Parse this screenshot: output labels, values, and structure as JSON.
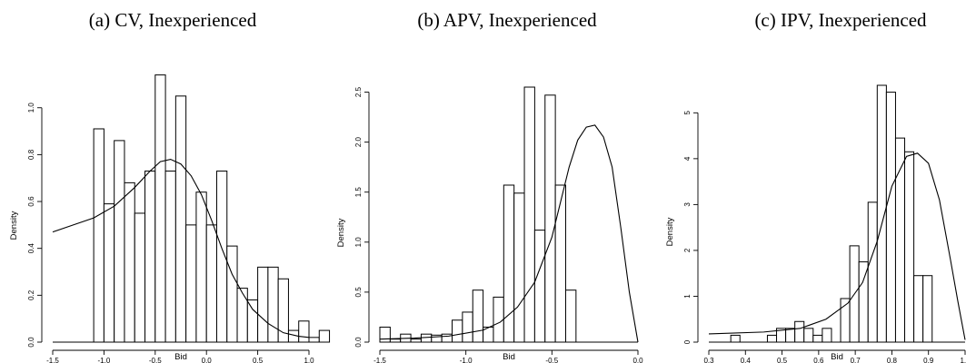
{
  "chart_data": [
    {
      "type": "histogram",
      "title": "(a) CV, Inexperienced",
      "xlabel": "Bid",
      "ylabel": "Density",
      "xlim": [
        -1.5,
        1.0
      ],
      "ylim": [
        0,
        1.15
      ],
      "xticks": [
        -1.5,
        -1.0,
        -0.5,
        0.0,
        0.5,
        1.0
      ],
      "xtick_labels": [
        "-1.5",
        "-1.0",
        "-0.5",
        "0.0",
        "0.5",
        "1.0"
      ],
      "yticks": [
        0,
        0.2,
        0.4,
        0.6,
        0.8,
        1.0
      ],
      "ytick_labels": [
        "0.0",
        "0.2",
        "0.4",
        "0.6",
        "0.8",
        "1.0"
      ],
      "bin_start": -1.1,
      "bin_width": 0.1,
      "values": [
        0.91,
        0.59,
        0.86,
        0.68,
        0.55,
        0.73,
        1.14,
        0.73,
        1.05,
        0.5,
        0.64,
        0.5,
        0.73,
        0.41,
        0.23,
        0.18,
        0.32,
        0.32,
        0.27,
        0.05,
        0.09,
        0.02,
        0.05
      ],
      "density_curve": {
        "x": [
          -1.5,
          -1.3,
          -1.1,
          -0.9,
          -0.7,
          -0.55,
          -0.45,
          -0.35,
          -0.25,
          -0.15,
          -0.05,
          0.05,
          0.15,
          0.25,
          0.35,
          0.45,
          0.6,
          0.75,
          0.9,
          1.0
        ],
        "y": [
          0.47,
          0.5,
          0.53,
          0.58,
          0.66,
          0.73,
          0.77,
          0.78,
          0.76,
          0.71,
          0.63,
          0.52,
          0.4,
          0.29,
          0.21,
          0.14,
          0.08,
          0.04,
          0.025,
          0.02
        ]
      }
    },
    {
      "type": "histogram",
      "title": "(b) APV, Inexperienced",
      "xlabel": "Bid",
      "ylabel": "Density",
      "xlim": [
        -1.5,
        0.0
      ],
      "ylim": [
        0,
        2.55
      ],
      "xticks": [
        -1.5,
        -1.0,
        -0.5,
        0.0
      ],
      "xtick_labels": [
        "-1.5",
        "-1.0",
        "-0.5",
        "0.0"
      ],
      "yticks": [
        0,
        0.5,
        1.0,
        1.5,
        2.0,
        2.5
      ],
      "ytick_labels": [
        "0.0",
        "0.5",
        "1.0",
        "1.5",
        "2.0",
        "2.5"
      ],
      "bin_start": -1.5,
      "bin_width": 0.06,
      "values": [
        0.15,
        0.03,
        0.08,
        0.03,
        0.08,
        0.07,
        0.08,
        0.22,
        0.3,
        0.52,
        0.15,
        0.45,
        1.57,
        1.49,
        2.55,
        1.12,
        2.47,
        1.57,
        0.52
      ],
      "density_curve": {
        "x": [
          -1.5,
          -1.3,
          -1.1,
          -0.9,
          -0.8,
          -0.7,
          -0.6,
          -0.5,
          -0.45,
          -0.4,
          -0.35,
          -0.3,
          -0.25,
          -0.2,
          -0.15,
          -0.1,
          -0.05,
          0.0
        ],
        "y": [
          0.03,
          0.04,
          0.06,
          0.12,
          0.2,
          0.35,
          0.6,
          1.05,
          1.4,
          1.75,
          2.02,
          2.15,
          2.17,
          2.05,
          1.75,
          1.15,
          0.5,
          0.0
        ]
      }
    },
    {
      "type": "histogram",
      "title": "(c) IPV, Inexperienced",
      "xlabel": "Bid",
      "ylabel": "Density",
      "xlim": [
        0.3,
        1.0
      ],
      "ylim": [
        0,
        5.6
      ],
      "xticks": [
        0.3,
        0.4,
        0.5,
        0.6,
        0.7,
        0.8,
        0.9,
        1.0
      ],
      "xtick_labels": [
        "0.3",
        "0.4",
        "0.5",
        "0.6",
        "0.7",
        "0.8",
        "0.9",
        "1.0"
      ],
      "yticks": [
        0,
        1,
        2,
        3,
        4,
        5
      ],
      "ytick_labels": [
        "0",
        "1",
        "2",
        "3",
        "4",
        "5"
      ],
      "bin_start": 0.36,
      "bin_width": 0.025,
      "values": [
        0.15,
        0.0,
        0.0,
        0.0,
        0.15,
        0.3,
        0.3,
        0.45,
        0.3,
        0.15,
        0.3,
        0.0,
        0.95,
        2.1,
        1.75,
        3.05,
        5.6,
        5.45,
        4.45,
        4.15,
        1.45,
        1.45
      ],
      "density_curve": {
        "x": [
          0.3,
          0.45,
          0.55,
          0.62,
          0.68,
          0.72,
          0.76,
          0.8,
          0.84,
          0.87,
          0.9,
          0.93,
          0.96,
          0.98,
          1.0
        ],
        "y": [
          0.18,
          0.22,
          0.3,
          0.5,
          0.85,
          1.3,
          2.2,
          3.4,
          4.05,
          4.12,
          3.9,
          3.1,
          1.8,
          0.9,
          0.05
        ]
      }
    }
  ]
}
